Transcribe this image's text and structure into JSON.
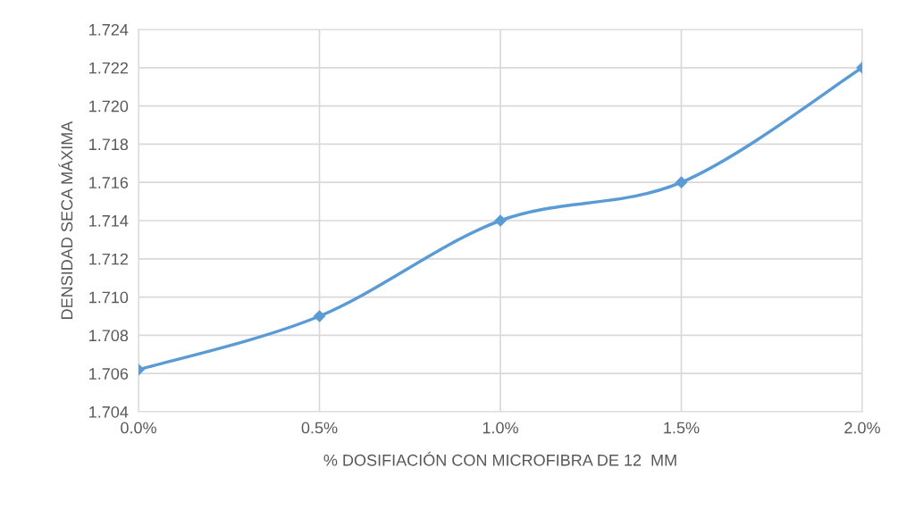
{
  "chart_data": {
    "type": "line",
    "xlabel": "% DOSIFIACIÓN CON MICROFIBRA DE 12  MM",
    "ylabel": "DENSIDAD SECA MÁXIMA",
    "x": [
      0,
      0.5,
      1.0,
      1.5,
      2.0
    ],
    "series": [
      {
        "color": "#5b9bd5",
        "values": [
          1.7062,
          1.709,
          1.714,
          1.716,
          1.722
        ]
      }
    ],
    "xlim": [
      0,
      2
    ],
    "xticks": [
      {
        "value": 0,
        "label": "0.0%"
      },
      {
        "value": 0.5,
        "label": "0.5%"
      },
      {
        "value": 1.0,
        "label": "1.0%"
      },
      {
        "value": 1.5,
        "label": "1.5%"
      },
      {
        "value": 2.0,
        "label": "2.0%"
      }
    ],
    "ylim": [
      1.704,
      1.724
    ],
    "yticks": [
      {
        "value": 1.704,
        "label": "1.704"
      },
      {
        "value": 1.706,
        "label": "1.706"
      },
      {
        "value": 1.708,
        "label": "1.708"
      },
      {
        "value": 1.71,
        "label": "1.710"
      },
      {
        "value": 1.712,
        "label": "1.712"
      },
      {
        "value": 1.714,
        "label": "1.714"
      },
      {
        "value": 1.716,
        "label": "1.716"
      },
      {
        "value": 1.718,
        "label": "1.718"
      },
      {
        "value": 1.72,
        "label": "1.720"
      },
      {
        "value": 1.722,
        "label": "1.722"
      },
      {
        "value": 1.724,
        "label": "1.724"
      }
    ],
    "grid": true,
    "marker": "diamond",
    "line_style": "solid",
    "legend": false
  }
}
